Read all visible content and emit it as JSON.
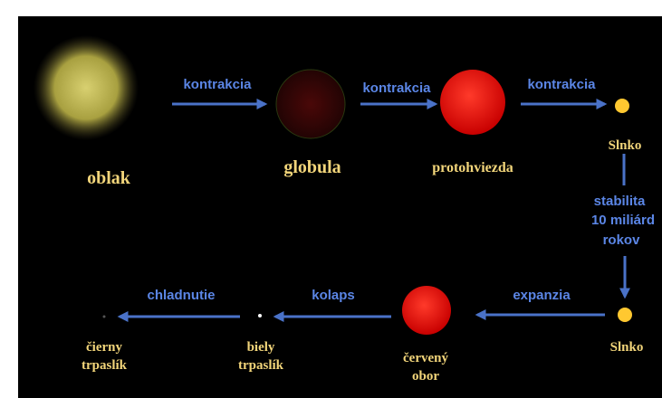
{
  "nodes": [
    {
      "label": "oblak"
    },
    {
      "label": "globula"
    },
    {
      "label": "protohviezda"
    },
    {
      "label": "Slnko"
    },
    {
      "label": "Slnko"
    },
    {
      "label": [
        "červený",
        "obor"
      ]
    },
    {
      "label": [
        "biely",
        "trpaslík"
      ]
    },
    {
      "label": [
        "čierny",
        "trpaslík"
      ]
    }
  ],
  "edges": [
    {
      "label": "kontrakcia"
    },
    {
      "label": "kontrakcia"
    },
    {
      "label": "kontrakcia"
    },
    {
      "label": [
        "stabilita",
        "10 miliárd",
        "rokov"
      ]
    },
    {
      "label": "expanzia"
    },
    {
      "label": "kolaps"
    },
    {
      "label": "chladnutie"
    }
  ]
}
